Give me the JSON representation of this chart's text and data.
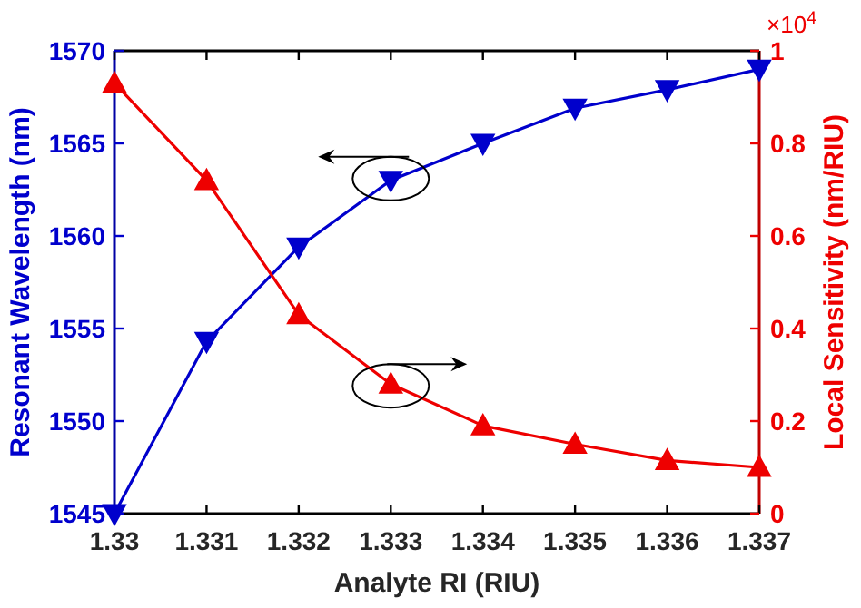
{
  "chart_data": {
    "type": "line",
    "xlabel": "Analyte RI (RIU)",
    "ylabel": "Resonant Wavelength (nm)",
    "y2label": "Local Sensitivity (nm/RIU)",
    "x": [
      1.33,
      1.331,
      1.332,
      1.333,
      1.334,
      1.335,
      1.336,
      1.337
    ],
    "xlim": [
      1.33,
      1.337
    ],
    "xticks": [
      1.33,
      1.331,
      1.332,
      1.333,
      1.334,
      1.335,
      1.336,
      1.337
    ],
    "ylim": [
      1545,
      1570
    ],
    "yticks": [
      1545,
      1550,
      1555,
      1560,
      1565,
      1570
    ],
    "y2lim": [
      0,
      1
    ],
    "y2ticks": [
      0,
      0.2,
      0.4,
      0.6,
      0.8,
      1
    ],
    "series": [
      {
        "color": "#0000cc",
        "marker": "triangle-down",
        "values": [
          1545,
          1554.3,
          1559.4,
          1563.0,
          1565.0,
          1566.9,
          1567.9,
          1569.0
        ]
      },
      {
        "color": "#ee0000",
        "marker": "triangle",
        "axis": "y2",
        "values": [
          0.93,
          0.72,
          0.43,
          0.28,
          0.19,
          0.15,
          0.115,
          0.1
        ]
      }
    ],
    "annotations": [
      "×10$^{4}$"
    ],
    "grid": false
  }
}
